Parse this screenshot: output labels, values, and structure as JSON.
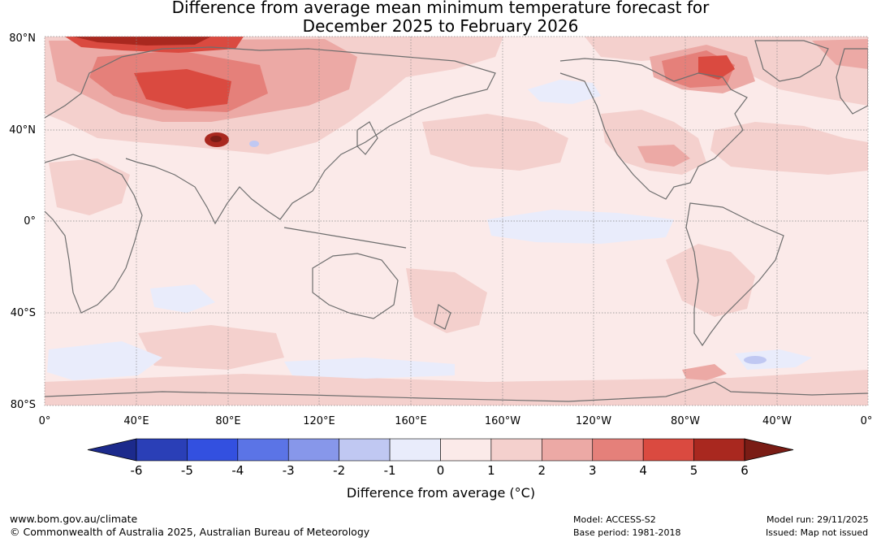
{
  "title": {
    "line1": "Difference from average mean minimum temperature forecast for",
    "line2": "December 2025 to February 2026"
  },
  "map": {
    "lat_labels": [
      "80°N",
      "40°N",
      "0°",
      "40°S",
      "80°S"
    ],
    "lon_labels": [
      "0°",
      "40°E",
      "80°E",
      "120°E",
      "160°E",
      "160°W",
      "120°W",
      "80°W",
      "40°W",
      "0°"
    ],
    "anomaly_regions": [
      {
        "name": "northern-eurasia-warm",
        "level": 2
      },
      {
        "name": "west-siberia-warm",
        "level": 4
      },
      {
        "name": "arctic-russia-warm",
        "level": 5
      },
      {
        "name": "hudson-bay-warm",
        "level": 4
      },
      {
        "name": "north-atlantic-warm",
        "level": 2
      },
      {
        "name": "tibet-hotspot",
        "level": 6
      },
      {
        "name": "equatorial-pacific-cool",
        "level": -1
      },
      {
        "name": "alaska-cool",
        "level": -1
      },
      {
        "name": "southern-ocean-cool",
        "level": -1
      },
      {
        "name": "southern-ocean-warm-patch",
        "level": 2
      }
    ]
  },
  "colorbar": {
    "ticks": [
      "-6",
      "-5",
      "-4",
      "-3",
      "-2",
      "-1",
      "0",
      "1",
      "2",
      "3",
      "4",
      "5",
      "6"
    ],
    "colors": [
      "#1c2a8c",
      "#2a3fb7",
      "#3350e0",
      "#5b74e6",
      "#8797ea",
      "#c0c8f2",
      "#e9ecfb",
      "#fbeae9",
      "#f4d0cd",
      "#eca9a5",
      "#e5807a",
      "#da4a40",
      "#a9281f",
      "#7a1c15"
    ],
    "label": "Difference from average (°C)"
  },
  "footer": {
    "url": "www.bom.gov.au/climate",
    "copyright": "© Commonwealth of Australia 2025, Australian Bureau of Meteorology",
    "model": "Model: ACCESS-S2",
    "base_period": "Base period: 1981-2018",
    "model_run": "Model run: 29/11/2025",
    "issued": "Issued: Map not issued"
  }
}
